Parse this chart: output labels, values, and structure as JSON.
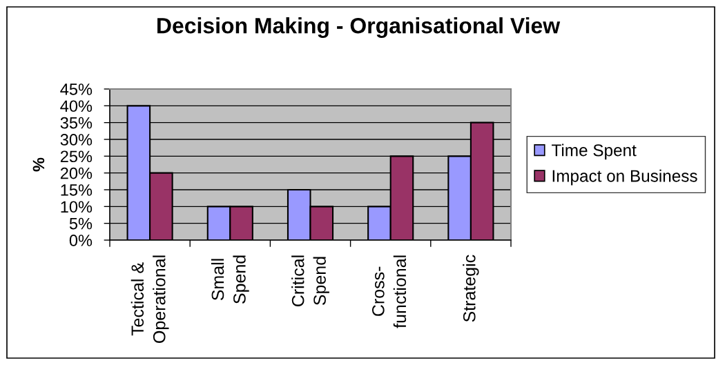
{
  "chart_data": {
    "type": "bar",
    "title": "Decision Making - Organisational View",
    "ylabel": "%",
    "categories": [
      "Tectical &\nOperational",
      "Small\nSpend",
      "Critical\nSpend",
      "Cross-\nfunctional",
      "Strategic"
    ],
    "series": [
      {
        "name": "Time Spent",
        "color": "#9999ff",
        "values": [
          40,
          10,
          15,
          10,
          25
        ]
      },
      {
        "name": "Impact on Business",
        "color": "#993366",
        "values": [
          20,
          10,
          10,
          25,
          35
        ]
      }
    ],
    "ylim": [
      0,
      45
    ],
    "yticks": [
      {
        "value": 0,
        "label": "0%"
      },
      {
        "value": 5,
        "label": "5%"
      },
      {
        "value": 10,
        "label": "10%"
      },
      {
        "value": 15,
        "label": "15%"
      },
      {
        "value": 20,
        "label": "20%"
      },
      {
        "value": 25,
        "label": "25%"
      },
      {
        "value": 30,
        "label": "30%"
      },
      {
        "value": 35,
        "label": "35%"
      },
      {
        "value": 40,
        "label": "40%"
      },
      {
        "value": 45,
        "label": "45%"
      }
    ],
    "grid": "y",
    "legend": "right"
  }
}
